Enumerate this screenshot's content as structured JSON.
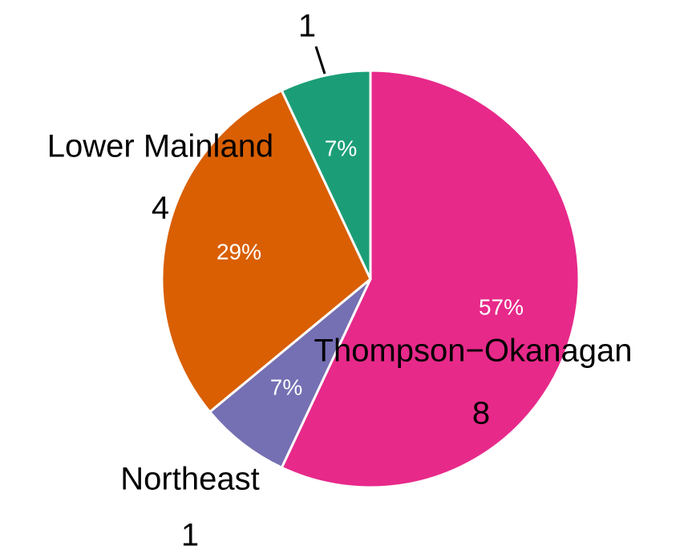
{
  "chart_data": {
    "type": "pie",
    "categories": [
      "Thompson−Okanagan",
      "Northeast",
      "Lower Mainland",
      null
    ],
    "values": [
      57,
      7,
      29,
      7
    ],
    "value_labels": [
      "57%",
      "7%",
      "29%",
      "7%"
    ],
    "counts": [
      8,
      1,
      4,
      1
    ],
    "colors": [
      "#e7298a",
      "#7570b3",
      "#d95f02",
      "#1b9e77"
    ]
  }
}
